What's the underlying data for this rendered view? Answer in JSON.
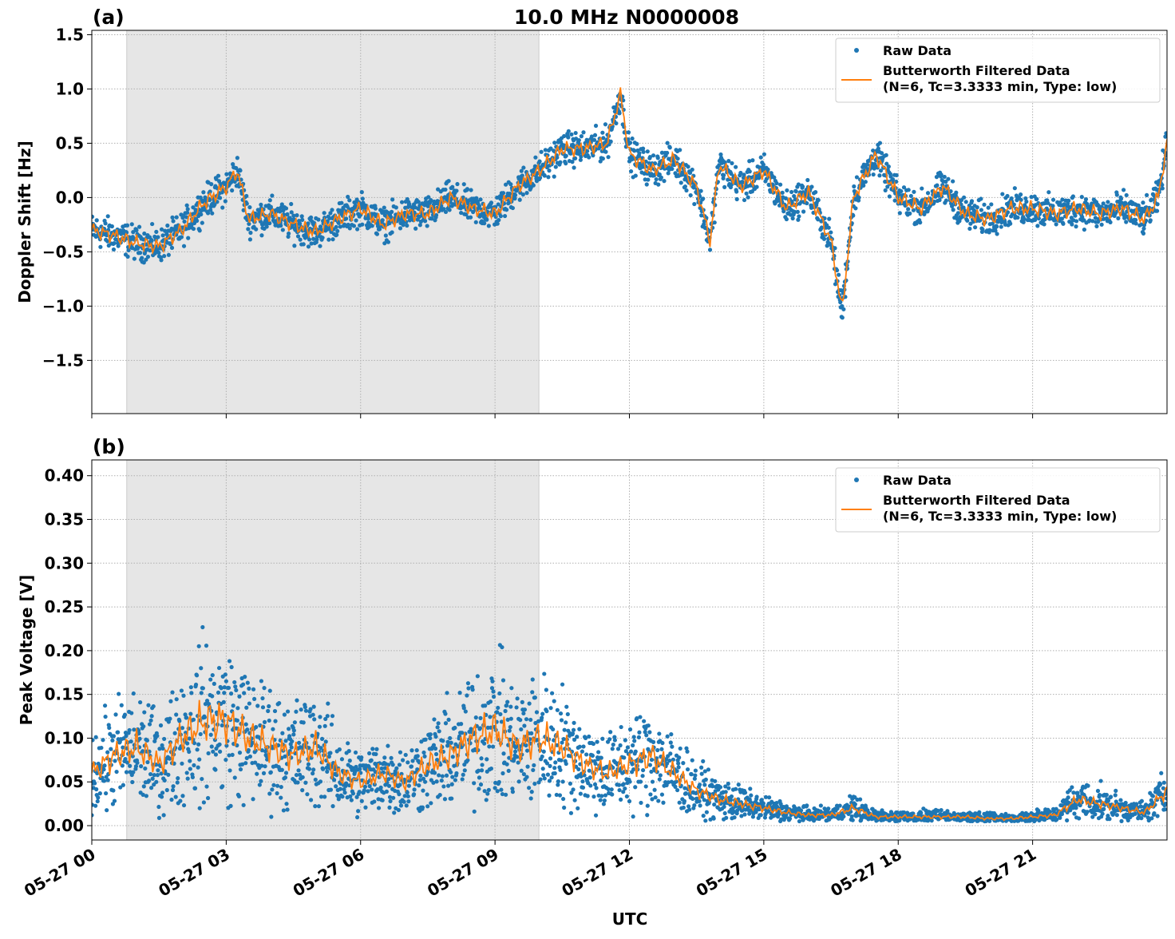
{
  "chart_data": [
    {
      "type": "scatter+line",
      "panel_label": "(a)",
      "title": "10.0 MHz N0000008",
      "ylabel": "Doppler Shift [Hz]",
      "xlabel": "",
      "xlim_hours": [
        0,
        24
      ],
      "ylim": [
        -1.99,
        1.54
      ],
      "yticks": [
        1.5,
        1.0,
        0.5,
        0.0,
        -0.5,
        -1.0,
        -1.5
      ],
      "ytick_labels": [
        "1.5",
        "1.0",
        "0.5",
        "0.0",
        "−0.5",
        "−1.0",
        "−1.5"
      ],
      "grid": true,
      "shaded_interval_hours": [
        0.78,
        9.98
      ],
      "shade_color": "#e6e6e6",
      "legend_position": "top-right",
      "legend": [
        "Raw Data",
        "Butterworth Filtered Data\n(N=6, Tc=3.3333 min, Type: low)"
      ],
      "series": [
        {
          "name": "Raw Data",
          "kind": "scatter",
          "color": "#1f77b4",
          "typical_spread": 0.22
        },
        {
          "name": "Butterworth Filtered Data",
          "kind": "line",
          "color": "#ff7f0e",
          "x_hours": [
            0,
            0.5,
            1,
            1.5,
            2,
            2.5,
            3,
            3.25,
            3.5,
            4,
            4.5,
            5,
            5.5,
            6,
            6.5,
            7,
            7.5,
            8,
            8.5,
            9,
            9.5,
            10,
            10.5,
            11,
            11.5,
            11.8,
            12,
            12.5,
            13,
            13.5,
            13.8,
            14,
            14.5,
            15,
            15.5,
            16,
            16.5,
            16.75,
            17,
            17.5,
            18,
            18.5,
            19,
            19.5,
            20,
            20.5,
            21,
            21.5,
            22,
            22.5,
            23,
            23.5,
            23.8,
            24
          ],
          "y": [
            -0.3,
            -0.35,
            -0.42,
            -0.45,
            -0.3,
            -0.05,
            0.1,
            0.25,
            -0.2,
            -0.15,
            -0.25,
            -0.32,
            -0.2,
            -0.1,
            -0.25,
            -0.15,
            -0.15,
            0.0,
            -0.1,
            -0.15,
            0.1,
            0.25,
            0.45,
            0.45,
            0.5,
            0.95,
            0.4,
            0.25,
            0.35,
            0.1,
            -0.4,
            0.3,
            0.1,
            0.25,
            -0.1,
            0.05,
            -0.4,
            -1.05,
            0.0,
            0.4,
            0.0,
            -0.1,
            0.1,
            -0.15,
            -0.2,
            -0.1,
            -0.1,
            -0.15,
            -0.1,
            -0.15,
            -0.1,
            -0.2,
            0.0,
            0.5
          ]
        }
      ]
    },
    {
      "type": "scatter+line",
      "panel_label": "(b)",
      "title": "",
      "ylabel": "Peak Voltage [V]",
      "xlabel": "UTC",
      "xlim_hours": [
        0,
        24
      ],
      "ylim": [
        -0.0164,
        0.418
      ],
      "yticks": [
        0.4,
        0.35,
        0.3,
        0.25,
        0.2,
        0.15,
        0.1,
        0.05,
        0.0
      ],
      "ytick_labels": [
        "0.40",
        "0.35",
        "0.30",
        "0.25",
        "0.20",
        "0.15",
        "0.10",
        "0.05",
        "0.00"
      ],
      "xtick_labels": [
        "05-27 00",
        "05-27 03",
        "05-27 06",
        "05-27 09",
        "05-27 12",
        "05-27 15",
        "05-27 18",
        "05-27 21"
      ],
      "xticks_hours": [
        0,
        3,
        6,
        9,
        12,
        15,
        18,
        21
      ],
      "grid": true,
      "shaded_interval_hours": [
        0.78,
        9.98
      ],
      "shade_color": "#e6e6e6",
      "legend_position": "top-right",
      "legend": [
        "Raw Data",
        "Butterworth Filtered Data\n(N=6, Tc=3.3333 min, Type: low)"
      ],
      "series": [
        {
          "name": "Raw Data",
          "kind": "scatter",
          "color": "#1f77b4",
          "typical_spread": 0.5
        },
        {
          "name": "Butterworth Filtered Data",
          "kind": "line",
          "color": "#ff7f0e",
          "x_hours": [
            0,
            0.5,
            1,
            1.5,
            2,
            2.5,
            3,
            3.5,
            4,
            4.5,
            5,
            5.5,
            6,
            6.5,
            7,
            7.5,
            8,
            8.5,
            9,
            9.5,
            10,
            10.5,
            11,
            11.5,
            12,
            12.5,
            13,
            13.5,
            14,
            14.5,
            15,
            15.5,
            16,
            16.5,
            17,
            17.5,
            18,
            18.5,
            19,
            19.5,
            20,
            20.5,
            21,
            21.5,
            22,
            22.5,
            23,
            23.5,
            24
          ],
          "y": [
            0.06,
            0.08,
            0.09,
            0.07,
            0.1,
            0.12,
            0.12,
            0.1,
            0.09,
            0.08,
            0.09,
            0.06,
            0.05,
            0.06,
            0.05,
            0.07,
            0.08,
            0.1,
            0.11,
            0.09,
            0.1,
            0.09,
            0.07,
            0.06,
            0.07,
            0.08,
            0.06,
            0.04,
            0.03,
            0.025,
            0.02,
            0.015,
            0.012,
            0.012,
            0.02,
            0.01,
            0.01,
            0.01,
            0.01,
            0.01,
            0.008,
            0.008,
            0.01,
            0.012,
            0.03,
            0.025,
            0.02,
            0.015,
            0.04
          ]
        }
      ]
    }
  ]
}
